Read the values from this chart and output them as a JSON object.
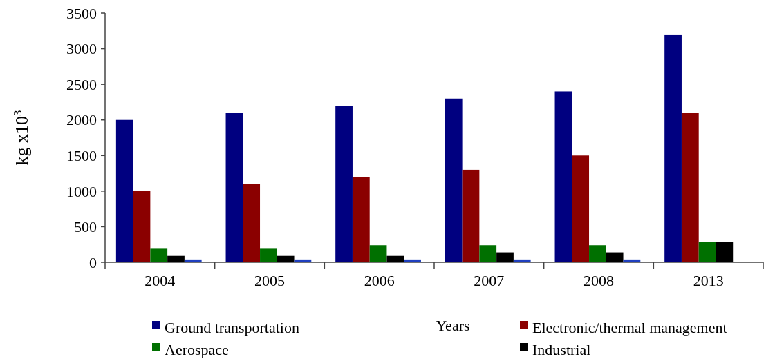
{
  "chart_data": {
    "type": "bar",
    "ylabel": "kg x10$^{3}$",
    "xlabel": "Years",
    "categories": [
      "2004",
      "2005",
      "2006",
      "2007",
      "2008",
      "2013"
    ],
    "series": [
      {
        "name": "Ground transportation",
        "color": "#000080",
        "values": [
          2000,
          2100,
          2200,
          2300,
          2400,
          3200
        ]
      },
      {
        "name": "Electronic/thermal management",
        "color": "#8b0000",
        "values": [
          1000,
          1100,
          1200,
          1300,
          1500,
          2100
        ]
      },
      {
        "name": "Aerospace",
        "color": "#007000",
        "values": [
          190,
          190,
          240,
          240,
          240,
          290
        ]
      },
      {
        "name": "Industrial",
        "color": "#000000",
        "values": [
          90,
          90,
          90,
          140,
          140,
          290
        ]
      },
      {
        "color": "#1f3fbf",
        "values": [
          40,
          40,
          40,
          40,
          40,
          null
        ]
      }
    ],
    "ylim": [
      0,
      3500
    ],
    "yticks": [
      0,
      500,
      1000,
      1500,
      2000,
      2500,
      3000,
      3500
    ],
    "grid": false,
    "legend": "bottom"
  }
}
